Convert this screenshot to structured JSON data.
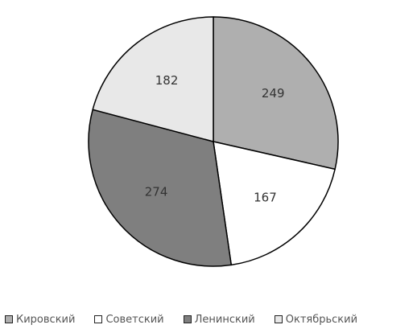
{
  "chart_data": {
    "type": "pie",
    "title": "",
    "slices": [
      {
        "label": "Кировский",
        "value": 249,
        "color": "#afafaf"
      },
      {
        "label": "Советский",
        "value": 167,
        "color": "#ffffff"
      },
      {
        "label": "Ленинский",
        "value": 274,
        "color": "#7f7f7f"
      },
      {
        "label": "Октябрьский",
        "value": 182,
        "color": "#e8e8e8"
      }
    ],
    "start_angle_deg": 0,
    "direction": "clockwise",
    "edge_color": "#000000",
    "legend_position": "bottom"
  }
}
